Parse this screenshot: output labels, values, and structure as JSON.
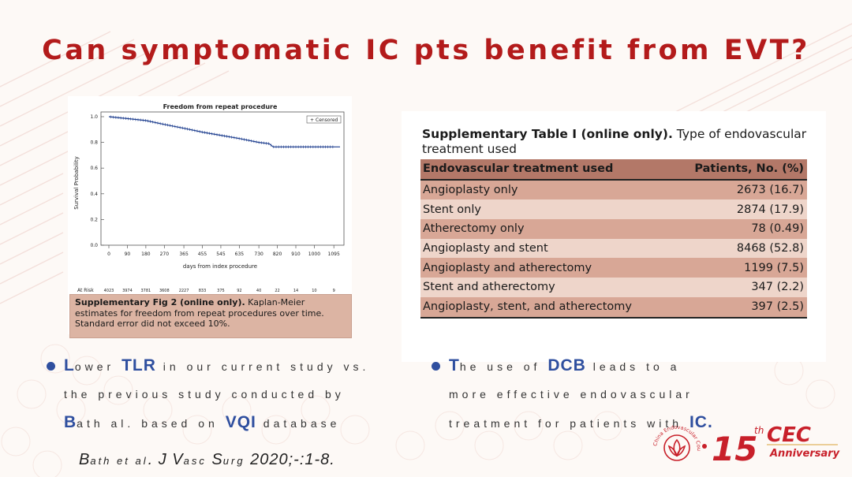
{
  "slide": {
    "title": "Can symptomatic IC pts benefit from EVT?"
  },
  "km_figure": {
    "chart_title": "Freedom from repeat procedure",
    "legend_label": "Censored",
    "y_label": "Survival Probability",
    "x_label": "days from index procedure",
    "at_risk_label": "At Risk",
    "caption_bold": "Supplementary Fig 2 (online only).",
    "caption_text": " Kaplan-Meier estimates for freedom from repeat procedures over time. Standard error did not exceed 10%."
  },
  "chart_data": {
    "type": "line",
    "title": "Freedom from repeat procedure",
    "xlabel": "days from index procedure",
    "ylabel": "Survival Probability",
    "xlim": [
      0,
      1125
    ],
    "ylim": [
      0,
      1.0
    ],
    "x_ticks": [
      "0",
      "90",
      "180",
      "270",
      "365",
      "455",
      "545",
      "635",
      "730",
      "820",
      "910",
      "1000",
      "1095"
    ],
    "y_ticks": [
      "0.0",
      "0.2",
      "0.4",
      "0.6",
      "0.8",
      "1.0"
    ],
    "series": [
      {
        "name": "Censored",
        "x": [
          0,
          60,
          90,
          180,
          270,
          365,
          455,
          545,
          635,
          730,
          780,
          800,
          820,
          910,
          1000,
          1095,
          1125
        ],
        "y": [
          1.0,
          0.99,
          0.985,
          0.97,
          0.94,
          0.91,
          0.88,
          0.855,
          0.83,
          0.8,
          0.79,
          0.765,
          0.765,
          0.765,
          0.765,
          0.765,
          0.765
        ]
      }
    ],
    "at_risk": [
      "4023",
      "3974",
      "3781",
      "3608",
      "2227",
      "833",
      "375",
      "92",
      "40",
      "22",
      "14",
      "10",
      "9"
    ],
    "legend": "top-right",
    "grid": false
  },
  "table": {
    "caption_bold": "Supplementary Table I (online only).",
    "caption_text": " Type of endovascular treatment used",
    "headers": [
      "Endovascular treatment used",
      "Patients, No. (%)"
    ],
    "rows": [
      [
        "Angioplasty only",
        "2673 (16.7)"
      ],
      [
        "Stent only",
        "2874 (17.9)"
      ],
      [
        "Atherectomy only",
        "78 (0.49)"
      ],
      [
        "Angioplasty and stent",
        "8468 (52.8)"
      ],
      [
        "Angioplasty and atherectomy",
        "1199 (7.5)"
      ],
      [
        "Stent and atherectomy",
        "347 (2.2)"
      ],
      [
        "Angioplasty, stent, and atherectomy",
        "397 (2.5)"
      ]
    ]
  },
  "bullets": {
    "left": {
      "l": "L",
      "t1": "ower ",
      "b1": "TLR",
      "t2": " in our current study vs. the previous study conducted by ",
      "b2": "B",
      "t3": "ath al. based on ",
      "b3": "VQI",
      "t4": " database"
    },
    "right": {
      "l": "T",
      "t1": "he use of ",
      "b1": "DCB",
      "t2": " leads to a more effective endovascular treatment for patients with ",
      "b2": "IC",
      "t3": "."
    }
  },
  "citation": {
    "a": "B",
    "b": "ath et al",
    "c": ". J V",
    "d": "asc",
    "e": " S",
    "f": "urg",
    "g": " 2020;-:1-8."
  },
  "logo": {
    "arc_text": "China Endovascular Course",
    "number": "15",
    "suffix": "th",
    "brand": "CEC",
    "sub": "Anniversary",
    "colors": {
      "red": "#c8202a",
      "gold": "#d9a23b"
    }
  },
  "colors": {
    "title": "#b31b1b",
    "bullet": "#2f4f9f"
  }
}
